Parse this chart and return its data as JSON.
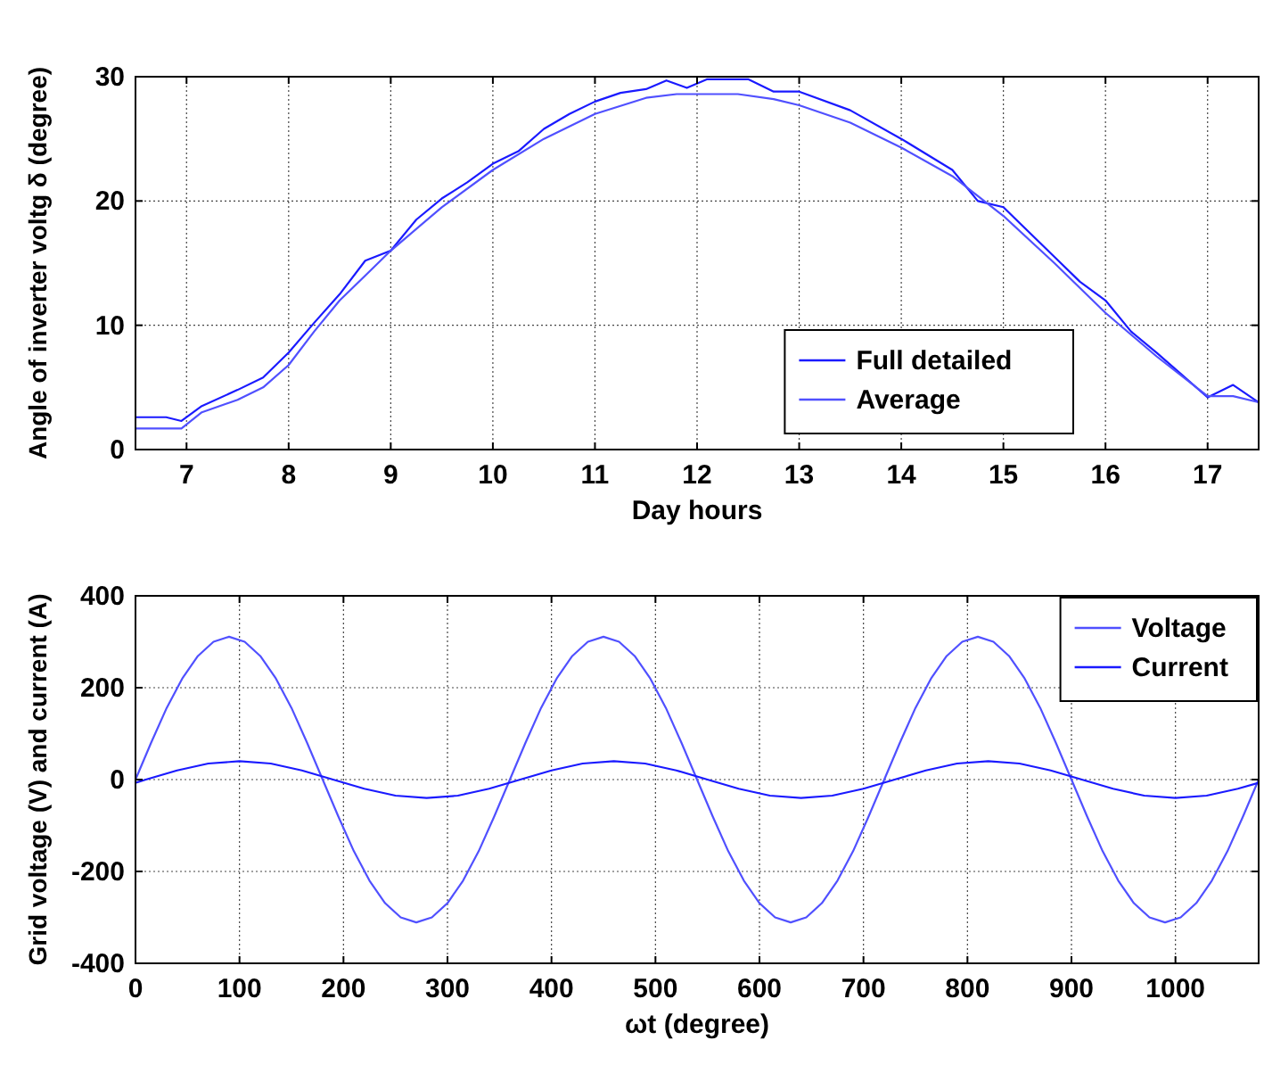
{
  "chart_data": [
    {
      "type": "line",
      "xlabel": "Day hours",
      "ylabel": "Angle of inverter voltg δ (degree)",
      "xlim": [
        6.5,
        17.5
      ],
      "xticks": [
        7,
        8,
        9,
        10,
        11,
        12,
        13,
        14,
        15,
        16,
        17
      ],
      "ylim": [
        0,
        30
      ],
      "yticks": [
        0,
        10,
        20,
        30
      ],
      "grid": true,
      "legend": "bottom right",
      "line_style": "solid",
      "marker": "none",
      "series": [
        {
          "name": "Full detailed",
          "color": "#1a1aff",
          "x": [
            6.5,
            6.8,
            6.95,
            7.15,
            7.5,
            7.75,
            8,
            8.25,
            8.5,
            8.75,
            9,
            9.25,
            9.5,
            9.75,
            10,
            10.25,
            10.5,
            10.75,
            11,
            11.25,
            11.5,
            11.7,
            11.9,
            12.1,
            12.5,
            12.75,
            13,
            13.5,
            14,
            14.5,
            14.75,
            15,
            15.5,
            15.75,
            16,
            16.25,
            16.5,
            16.75,
            17,
            17.25,
            17.5
          ],
          "values": [
            2.6,
            2.6,
            2.3,
            3.5,
            4.8,
            5.8,
            7.8,
            10.2,
            12.5,
            15.2,
            16,
            18.5,
            20.2,
            21.5,
            23,
            24,
            25.8,
            27,
            28,
            28.7,
            29,
            29.7,
            29.1,
            29.8,
            29.8,
            28.8,
            28.8,
            27.3,
            25,
            22.5,
            20,
            19.5,
            15.5,
            13.5,
            12,
            9.5,
            7.8,
            6,
            4.2,
            5.2,
            3.8
          ]
        },
        {
          "name": "Average",
          "color": "#5050ff",
          "x": [
            6.5,
            6.95,
            7.15,
            7.5,
            7.75,
            8,
            8.25,
            8.5,
            8.75,
            9,
            9.5,
            10,
            10.5,
            11,
            11.5,
            11.8,
            12.4,
            12.75,
            13,
            13.5,
            14,
            14.5,
            15,
            15.5,
            16,
            16.5,
            17,
            17.25,
            17.5
          ],
          "values": [
            1.7,
            1.7,
            3,
            4,
            5,
            6.8,
            9.5,
            12,
            14,
            16,
            19.5,
            22.5,
            25,
            27,
            28.3,
            28.6,
            28.6,
            28.2,
            27.7,
            26.3,
            24.3,
            22,
            18.8,
            15,
            11,
            7.5,
            4.3,
            4.3,
            3.8
          ]
        }
      ]
    },
    {
      "type": "line",
      "xlabel": "ωt (degree)",
      "ylabel": "Grid voltage (V) and current (A)",
      "xlim": [
        0,
        1080
      ],
      "xticks": [
        0,
        100,
        200,
        300,
        400,
        500,
        600,
        700,
        800,
        900,
        1000
      ],
      "ylim": [
        -400,
        400
      ],
      "yticks": [
        -400,
        -200,
        0,
        200,
        400
      ],
      "grid": true,
      "legend": "top right",
      "line_style": "solid",
      "marker": "none",
      "series": [
        {
          "name": "Voltage",
          "color": "#5050ff",
          "x": [
            0,
            15,
            30,
            45,
            60,
            75,
            90,
            105,
            120,
            135,
            150,
            165,
            180,
            195,
            210,
            225,
            240,
            255,
            270,
            285,
            300,
            315,
            330,
            345,
            360,
            375,
            390,
            405,
            420,
            435,
            450,
            465,
            480,
            495,
            510,
            525,
            540,
            555,
            570,
            585,
            600,
            615,
            630,
            645,
            660,
            675,
            690,
            705,
            720,
            735,
            750,
            765,
            780,
            795,
            810,
            825,
            840,
            855,
            870,
            885,
            900,
            915,
            930,
            945,
            960,
            975,
            990,
            1005,
            1020,
            1035,
            1050,
            1065,
            1080
          ],
          "values": [
            0,
            80,
            156,
            220,
            269,
            300,
            311,
            300,
            269,
            220,
            156,
            80,
            0,
            -80,
            -156,
            -220,
            -269,
            -300,
            -311,
            -300,
            -269,
            -220,
            -156,
            -80,
            0,
            80,
            156,
            220,
            269,
            300,
            311,
            300,
            269,
            220,
            156,
            80,
            0,
            -80,
            -156,
            -220,
            -269,
            -300,
            -311,
            -300,
            -269,
            -220,
            -156,
            -80,
            0,
            80,
            156,
            220,
            269,
            300,
            311,
            300,
            269,
            220,
            156,
            80,
            0,
            -80,
            -156,
            -220,
            -269,
            -300,
            -311,
            -300,
            -269,
            -220,
            -156,
            -80,
            0
          ]
        },
        {
          "name": "Current",
          "color": "#1a1aff",
          "x": [
            0,
            10,
            40,
            70,
            100,
            130,
            160,
            190,
            220,
            250,
            280,
            310,
            340,
            370,
            400,
            430,
            460,
            490,
            520,
            550,
            580,
            610,
            640,
            670,
            700,
            730,
            760,
            790,
            820,
            850,
            880,
            910,
            940,
            970,
            1000,
            1030,
            1060,
            1080
          ],
          "values": [
            -7,
            0,
            20,
            35,
            40,
            35,
            20,
            0,
            -20,
            -35,
            -40,
            -35,
            -20,
            0,
            20,
            35,
            40,
            35,
            20,
            0,
            -20,
            -35,
            -40,
            -35,
            -20,
            0,
            20,
            35,
            40,
            35,
            20,
            0,
            -20,
            -35,
            -40,
            -35,
            -20,
            -7
          ]
        }
      ]
    }
  ]
}
